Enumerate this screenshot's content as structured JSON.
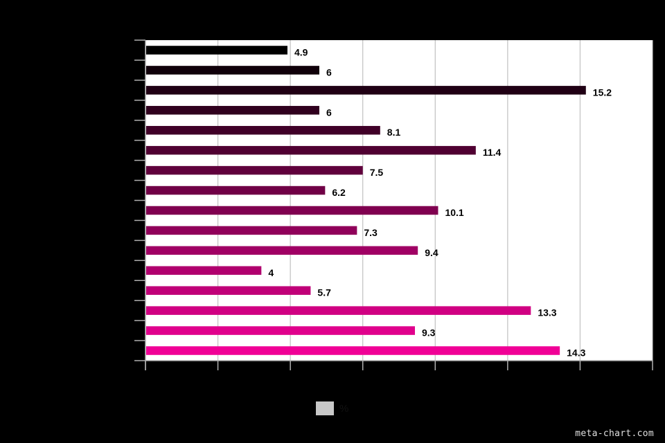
{
  "chart_data": {
    "type": "bar",
    "orientation": "horizontal",
    "title": "",
    "xlabel": "",
    "ylabel": "",
    "xlim": [
      0,
      17.5
    ],
    "grid": true,
    "legend_position": "bottom-center",
    "series": [
      {
        "name": "%",
        "values": [
          4.9,
          6,
          15.2,
          6,
          8.1,
          11.4,
          7.5,
          6.2,
          10.1,
          7.3,
          9.4,
          4,
          5.7,
          13.3,
          9.3,
          14.3
        ]
      }
    ],
    "bar_colors": [
      "#000000",
      "#10000a",
      "#200014",
      "#30001e",
      "#400028",
      "#500032",
      "#60003c",
      "#700046",
      "#800050",
      "#90005a",
      "#a00064",
      "#b0006e",
      "#c00078",
      "#d00082",
      "#e0008c",
      "#f00096"
    ],
    "background_color": "#ffffff",
    "legend_swatch_color": "#c8c8c8"
  },
  "watermark": "meta-chart.com"
}
